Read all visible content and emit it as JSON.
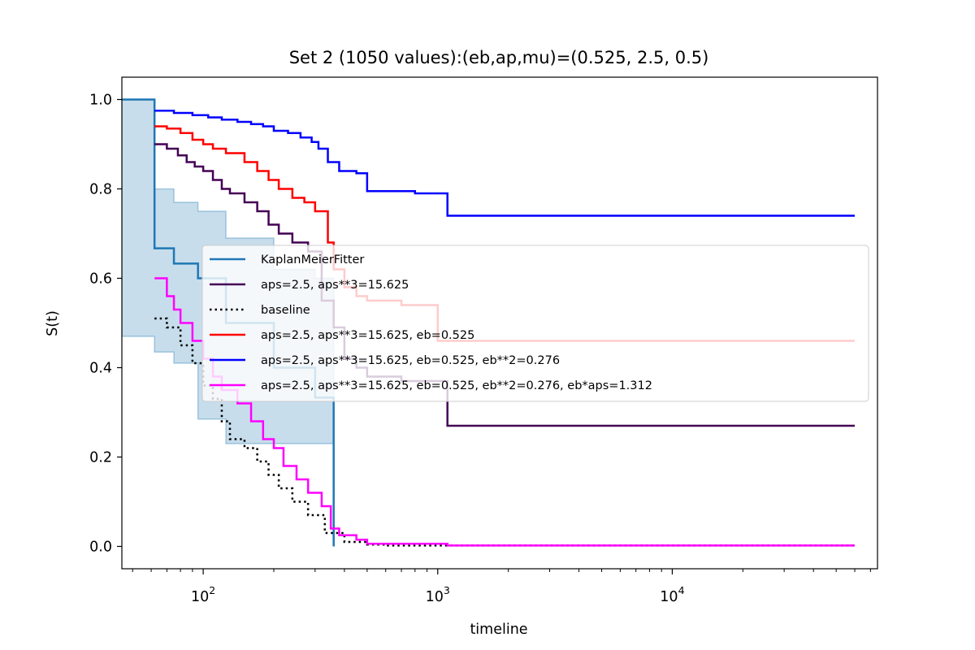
{
  "chart_data": {
    "type": "line",
    "title": "Set 2 (1050 values):(eb,ap,mu)=(0.525, 2.5, 0.5)",
    "xlabel": "timeline",
    "ylabel": "S(t)",
    "xscale": "log",
    "xlim": [
      45,
      75000
    ],
    "ylim": [
      -0.05,
      1.05
    ],
    "x_ticks": [
      {
        "value": 100,
        "base": "10",
        "exp": "2"
      },
      {
        "value": 1000,
        "base": "10",
        "exp": "3"
      },
      {
        "value": 10000,
        "base": "10",
        "exp": "4"
      }
    ],
    "y_ticks": [
      {
        "value": 0.0,
        "label": "0.0"
      },
      {
        "value": 0.2,
        "label": "0.2"
      },
      {
        "value": 0.4,
        "label": "0.4"
      },
      {
        "value": 0.6,
        "label": "0.6"
      },
      {
        "value": 0.8,
        "label": "0.8"
      },
      {
        "value": 1.0,
        "label": "1.0"
      }
    ],
    "grid": false,
    "legend_position": "center-right",
    "km_confidence_band": {
      "color": "#1f77b4",
      "x": [
        45,
        62,
        75,
        95,
        125,
        200,
        300,
        352,
        360
      ],
      "lower": [
        1.0,
        0.47,
        0.435,
        0.41,
        0.285,
        0.23,
        0.23,
        0.23,
        0.23
      ],
      "upper": [
        1.0,
        0.8,
        0.77,
        0.75,
        0.69,
        0.62,
        0.6,
        0.6,
        0.6
      ]
    },
    "series": [
      {
        "name": "KaplanMeierFitter",
        "color": "#1f77b4",
        "style": "solid",
        "x": [
          45,
          62,
          75,
          95,
          125,
          200,
          300,
          360
        ],
        "y": [
          1.0,
          0.667,
          0.633,
          0.6,
          0.5,
          0.4,
          0.333,
          0.0
        ]
      },
      {
        "name": "aps=2.5, aps**3=15.625",
        "color": "#440154",
        "style": "solid",
        "x": [
          62,
          70,
          78,
          85,
          92,
          100,
          110,
          120,
          130,
          150,
          170,
          190,
          210,
          240,
          280,
          320,
          360,
          400,
          450,
          500,
          700,
          1100,
          60000
        ],
        "y": [
          0.9,
          0.89,
          0.875,
          0.86,
          0.85,
          0.84,
          0.82,
          0.8,
          0.79,
          0.77,
          0.75,
          0.72,
          0.7,
          0.68,
          0.66,
          0.55,
          0.49,
          0.42,
          0.4,
          0.38,
          0.37,
          0.27,
          0.27
        ]
      },
      {
        "name": "baseline",
        "color": "#000000",
        "style": "dotted",
        "x": [
          62,
          70,
          80,
          90,
          100,
          110,
          120,
          130,
          150,
          170,
          190,
          210,
          240,
          280,
          330,
          400,
          500,
          600,
          1000,
          60000
        ],
        "y": [
          0.51,
          0.49,
          0.45,
          0.41,
          0.36,
          0.33,
          0.28,
          0.24,
          0.22,
          0.19,
          0.16,
          0.13,
          0.1,
          0.07,
          0.03,
          0.01,
          0.004,
          0.002,
          0.002,
          0.002
        ]
      },
      {
        "name": "aps=2.5, aps**3=15.625, eb=0.525",
        "color": "#ff0000",
        "style": "solid",
        "x": [
          62,
          70,
          80,
          90,
          100,
          110,
          125,
          150,
          170,
          190,
          210,
          240,
          270,
          300,
          340,
          360,
          400,
          450,
          500,
          700,
          1000,
          60000
        ],
        "y": [
          0.94,
          0.935,
          0.925,
          0.91,
          0.9,
          0.89,
          0.88,
          0.86,
          0.84,
          0.82,
          0.8,
          0.78,
          0.77,
          0.75,
          0.68,
          0.62,
          0.58,
          0.56,
          0.55,
          0.54,
          0.46,
          0.46
        ]
      },
      {
        "name": "aps=2.5, aps**3=15.625, eb=0.525, eb**2=0.276",
        "color": "#0000ff",
        "style": "solid",
        "x": [
          62,
          75,
          90,
          105,
          120,
          140,
          160,
          180,
          200,
          230,
          260,
          290,
          310,
          340,
          380,
          450,
          500,
          600,
          800,
          1100,
          60000
        ],
        "y": [
          0.975,
          0.97,
          0.965,
          0.96,
          0.955,
          0.95,
          0.945,
          0.94,
          0.93,
          0.925,
          0.915,
          0.905,
          0.89,
          0.86,
          0.84,
          0.835,
          0.795,
          0.795,
          0.79,
          0.74,
          0.74
        ]
      },
      {
        "name": "aps=2.5, aps**3=15.625, eb=0.525, eb**2=0.276, eb*aps=1.312",
        "color": "#ff00ff",
        "style": "solid",
        "x": [
          62,
          70,
          75,
          80,
          90,
          100,
          110,
          120,
          140,
          160,
          180,
          200,
          220,
          250,
          280,
          320,
          350,
          380,
          450,
          500,
          700,
          1100,
          60000
        ],
        "y": [
          0.6,
          0.56,
          0.53,
          0.5,
          0.46,
          0.42,
          0.38,
          0.35,
          0.32,
          0.28,
          0.24,
          0.22,
          0.18,
          0.15,
          0.12,
          0.09,
          0.04,
          0.025,
          0.015,
          0.006,
          0.006,
          0.002,
          0.002
        ]
      }
    ]
  }
}
